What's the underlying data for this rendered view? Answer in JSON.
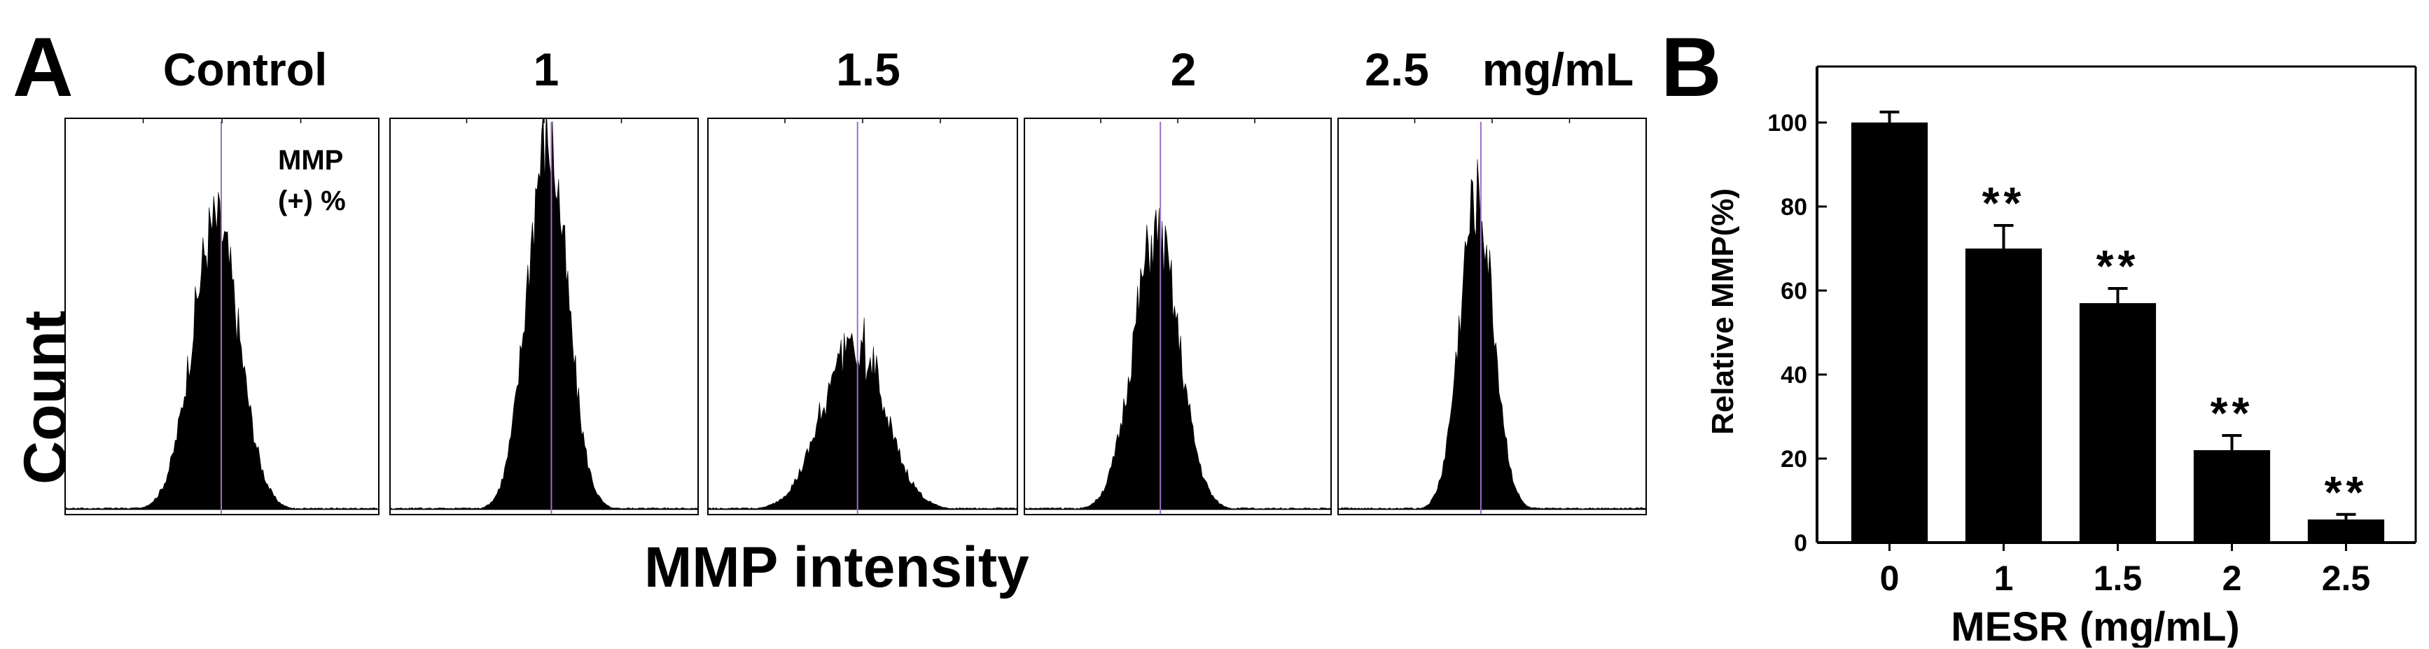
{
  "panel_a": {
    "letter": "A",
    "ylabel": "Count",
    "xlabel": "MMP intensity",
    "annotation_line1": "MMP",
    "annotation_line2": "(+) %",
    "unit_label": "mg/mL",
    "marker_color": "#9b6fc7"
  },
  "panel_b": {
    "letter": "B"
  },
  "chart_data": [
    {
      "type": "histogram",
      "panels": [
        {
          "label": "Control",
          "peak_position": 0.48,
          "peak_height": 0.76,
          "spread": 0.075
        },
        {
          "label": "1",
          "peak_position": 0.51,
          "peak_height": 0.98,
          "spread": 0.065
        },
        {
          "label": "1.5",
          "peak_position": 0.47,
          "peak_height": 0.44,
          "spread": 0.1
        },
        {
          "label": "2",
          "peak_position": 0.43,
          "peak_height": 0.73,
          "spread": 0.075
        },
        {
          "label": "2.5",
          "peak_position": 0.45,
          "peak_height": 0.82,
          "spread": 0.055
        }
      ],
      "xlabel": "MMP intensity",
      "ylabel": "Count"
    },
    {
      "type": "bar",
      "categories": [
        "0",
        "1",
        "1.5",
        "2",
        "2.5"
      ],
      "values": [
        100,
        70,
        57,
        22,
        5.5
      ],
      "errors": [
        2.5,
        5.5,
        3.5,
        3.5,
        1.2
      ],
      "annotations": [
        "",
        "**",
        "**",
        "**",
        "**"
      ],
      "xlabel": "MESR (mg/mL)",
      "ylabel": "Relative MMP(%)",
      "ylim": [
        0,
        110
      ],
      "yticks": [
        0,
        20,
        40,
        60,
        80,
        100
      ],
      "bar_color": "#000000"
    }
  ]
}
